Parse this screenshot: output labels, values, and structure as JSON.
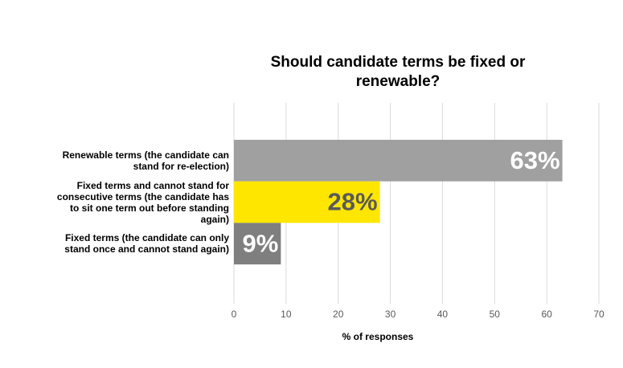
{
  "chart_data": {
    "type": "bar",
    "orientation": "horizontal",
    "title": "Should candidate terms be fixed or renewable?",
    "categories": [
      "Renewable terms (the candidate can stand for re-election)",
      "Fixed terms and cannot stand for consecutive terms (the candidate has to sit one term out before standing again)",
      "Fixed terms (the candidate can only stand once and cannot stand again)"
    ],
    "values": [
      63,
      28,
      9
    ],
    "value_labels": [
      "63%",
      "28%",
      "9%"
    ],
    "colors": [
      "#a0a0a0",
      "#ffe600",
      "#7f7f7f"
    ],
    "label_colors": [
      "#ffffff",
      "#5a5a5a",
      "#ffffff"
    ],
    "xlabel": "% of responses",
    "xlim": [
      0,
      70
    ],
    "xticks": [
      0,
      10,
      20,
      30,
      40,
      50,
      60,
      70
    ],
    "grid": true
  }
}
